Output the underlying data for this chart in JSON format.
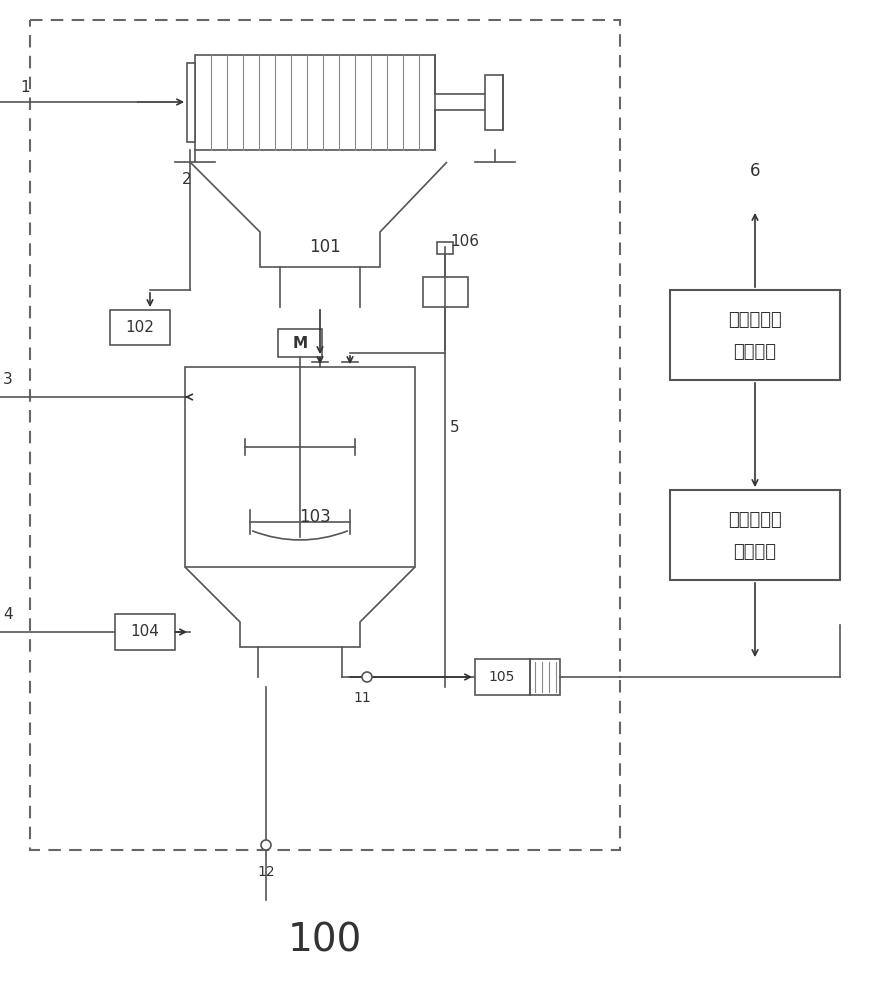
{
  "bg_color": "#ffffff",
  "border_color": "#555555",
  "line_color": "#555555",
  "label_1": "1",
  "label_2": "2",
  "label_3": "3",
  "label_4": "4",
  "label_5": "5",
  "label_6": "6",
  "label_11": "11",
  "label_12": "12",
  "label_100": "100",
  "label_101": "101",
  "label_102": "102",
  "label_103": "103",
  "label_104": "104",
  "label_105": "105",
  "label_106": "106",
  "label_M": "M",
  "box3_line1": "第３级浆洗",
  "box3_line2": "除磁系统",
  "box2_line1": "第２级浆洗",
  "box2_line2": "除磁系统",
  "font_size_labels": 11,
  "font_size_box": 13,
  "font_size_100": 28,
  "dashed_border": [
    5,
    4
  ]
}
